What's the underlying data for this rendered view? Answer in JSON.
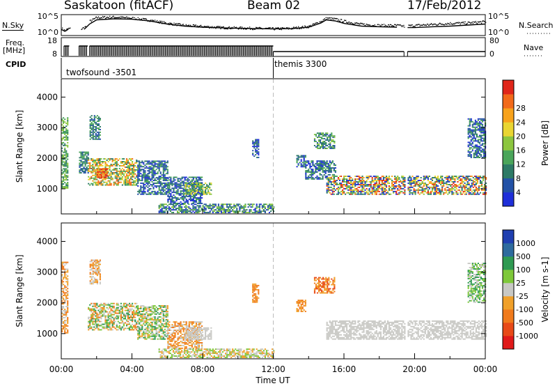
{
  "header": {
    "station": "Saskatoon (fitACF)",
    "beam": "Beam 02",
    "date": "17/Feb/2012"
  },
  "chart_data": [
    {
      "type": "line",
      "panel": "noise",
      "left_label": "N.Sky",
      "right_label": "N.Search",
      "left_ticks": [
        "10^5",
        "10^0"
      ],
      "right_ticks": [
        "10^5",
        "10^0"
      ],
      "x_hours": [
        0,
        0.2,
        0.4,
        1.0,
        1.3,
        1.6,
        2,
        3,
        4,
        5,
        6,
        7,
        8,
        9,
        10,
        11,
        12,
        13,
        14,
        14.7,
        15,
        15.5,
        16,
        17,
        18,
        19,
        19.5,
        19.6,
        20,
        21,
        22,
        23,
        24
      ],
      "sky": [
        0.3,
        0.2,
        0.3,
        0.25,
        0.3,
        0.55,
        0.75,
        0.8,
        0.78,
        0.7,
        0.55,
        0.45,
        0.4,
        0.37,
        0.35,
        0.33,
        0.32,
        0.33,
        0.4,
        0.6,
        0.75,
        0.7,
        0.58,
        0.45,
        0.42,
        0.4,
        0.35,
        0.38,
        0.38,
        0.42,
        0.45,
        0.5,
        0.55
      ],
      "search": [
        0.35,
        0.25,
        0.35,
        0.3,
        0.4,
        0.7,
        0.88,
        0.9,
        0.85,
        0.75,
        0.6,
        0.5,
        0.45,
        0.4,
        0.38,
        0.36,
        0.34,
        0.36,
        0.45,
        0.7,
        0.85,
        0.8,
        0.7,
        0.55,
        0.5,
        0.5,
        0.45,
        0.48,
        0.5,
        0.55,
        0.6,
        0.62,
        0.68
      ],
      "gaps": [
        [
          0.5,
          1.1
        ],
        [
          1.4,
          1.6
        ],
        [
          19.4,
          19.6
        ]
      ]
    },
    {
      "type": "line",
      "panel": "frequency",
      "left_label_lines": [
        "Freq.",
        "[MHz]"
      ],
      "right_label": "Nave",
      "left_ticks": [
        18,
        8
      ],
      "right_ticks": [
        80,
        0
      ],
      "freq_segments": [
        {
          "start": 0.15,
          "end": 0.45,
          "level": "high"
        },
        {
          "start": 1.0,
          "end": 1.5,
          "level": "high"
        },
        {
          "start": 1.6,
          "end": 12.0,
          "level": "high"
        },
        {
          "start": 12.0,
          "end": 19.4,
          "level": "low"
        },
        {
          "start": 19.6,
          "end": 24.0,
          "level": "low"
        }
      ],
      "mode_change": 12.0
    },
    {
      "type": "table",
      "panel": "cpid",
      "label": "CPID",
      "modes": [
        {
          "name": "twofsound -3501",
          "start": 0.0
        },
        {
          "name": "themis 3300",
          "start": 12.0
        }
      ]
    },
    {
      "type": "heatmap",
      "panel": "power",
      "ylabel": "Slant Range [km]",
      "yticks": [
        1000,
        2000,
        3000,
        4000
      ],
      "ylim": [
        180,
        4600
      ],
      "xlim": [
        0,
        24
      ],
      "colorbar_label": "Power [dB]",
      "colorbar_ticks": [
        4,
        8,
        12,
        16,
        20,
        24,
        28
      ],
      "colors": [
        "#1f2fd9",
        "#2352a6",
        "#2d7a66",
        "#4aa55a",
        "#8cc63f",
        "#e9d532",
        "#f7a21c",
        "#f26a1a",
        "#e0261a"
      ],
      "regions": [
        {
          "t0": 0.0,
          "t1": 0.35,
          "r0": 1000,
          "r1": 3300,
          "levels": [
            2,
            4
          ]
        },
        {
          "t0": 1.0,
          "t1": 1.5,
          "r0": 1500,
          "r1": 2200,
          "levels": [
            1,
            3
          ]
        },
        {
          "t0": 1.6,
          "t1": 2.2,
          "r0": 2600,
          "r1": 3400,
          "levels": [
            1,
            3
          ]
        },
        {
          "t0": 1.5,
          "t1": 4.3,
          "r0": 1100,
          "r1": 2000,
          "levels": [
            2,
            7
          ]
        },
        {
          "t0": 2.0,
          "t1": 2.6,
          "r0": 1350,
          "r1": 1650,
          "levels": [
            6,
            8
          ]
        },
        {
          "t0": 4.3,
          "t1": 6.0,
          "r0": 800,
          "r1": 1900,
          "levels": [
            0,
            3
          ]
        },
        {
          "t0": 6.0,
          "t1": 8.0,
          "r0": 500,
          "r1": 1400,
          "levels": [
            0,
            3
          ]
        },
        {
          "t0": 7.0,
          "t1": 8.5,
          "r0": 800,
          "r1": 1200,
          "levels": [
            2,
            5
          ]
        },
        {
          "t0": 5.5,
          "t1": 12.0,
          "r0": 200,
          "r1": 500,
          "levels": [
            0,
            4
          ]
        },
        {
          "t0": 10.8,
          "t1": 11.2,
          "r0": 2000,
          "r1": 2600,
          "levels": [
            0,
            2
          ]
        },
        {
          "t0": 13.3,
          "t1": 13.8,
          "r0": 1700,
          "r1": 2100,
          "levels": [
            0,
            3
          ]
        },
        {
          "t0": 14.3,
          "t1": 15.5,
          "r0": 2300,
          "r1": 2800,
          "levels": [
            1,
            4
          ]
        },
        {
          "t0": 13.8,
          "t1": 15.5,
          "r0": 1300,
          "r1": 1900,
          "levels": [
            0,
            3
          ]
        },
        {
          "t0": 15.0,
          "t1": 19.4,
          "r0": 800,
          "r1": 1400,
          "levels": [
            0,
            8
          ]
        },
        {
          "t0": 19.6,
          "t1": 24.0,
          "r0": 800,
          "r1": 1400,
          "levels": [
            0,
            8
          ]
        },
        {
          "t0": 23.0,
          "t1": 24.0,
          "r0": 2000,
          "r1": 3300,
          "levels": [
            0,
            3
          ]
        }
      ]
    },
    {
      "type": "heatmap",
      "panel": "velocity",
      "ylabel": "Slant Range [km]",
      "yticks": [
        1000,
        2000,
        3000,
        4000
      ],
      "ylim": [
        180,
        4600
      ],
      "xlim": [
        0,
        24
      ],
      "xticks": [
        "00:00",
        "04:00",
        "08:00",
        "12:00",
        "16:00",
        "20:00",
        "00:00"
      ],
      "xlabel": "Time UT",
      "colorbar_label": "Velocity [m s-1]",
      "colorbar_ticks": [
        "1000",
        "500",
        "100",
        "25",
        "-25",
        "-100",
        "-500",
        "-1000"
      ],
      "colors": [
        "#1f3fb0",
        "#2e6b9e",
        "#2f9a52",
        "#7ec83a",
        "#c8c8c4",
        "#f0a02a",
        "#f07a1c",
        "#e84a18",
        "#e01a1a"
      ],
      "regions": [
        {
          "t0": 0.0,
          "t1": 0.35,
          "r0": 1000,
          "r1": 3300,
          "levels": [
            4,
            6
          ]
        },
        {
          "t0": 1.6,
          "t1": 2.2,
          "r0": 2600,
          "r1": 3400,
          "levels": [
            4,
            6
          ]
        },
        {
          "t0": 1.5,
          "t1": 4.3,
          "r0": 1100,
          "r1": 2000,
          "levels": [
            2,
            6
          ]
        },
        {
          "t0": 4.3,
          "t1": 6.0,
          "r0": 800,
          "r1": 1900,
          "levels": [
            2,
            5
          ]
        },
        {
          "t0": 6.0,
          "t1": 8.0,
          "r0": 500,
          "r1": 1400,
          "levels": [
            4,
            6
          ]
        },
        {
          "t0": 7.0,
          "t1": 8.5,
          "r0": 800,
          "r1": 1200,
          "levels": [
            4,
            4
          ]
        },
        {
          "t0": 5.5,
          "t1": 12.0,
          "r0": 200,
          "r1": 500,
          "levels": [
            3,
            5
          ]
        },
        {
          "t0": 10.8,
          "t1": 11.2,
          "r0": 2000,
          "r1": 2600,
          "levels": [
            5,
            6
          ]
        },
        {
          "t0": 13.3,
          "t1": 13.8,
          "r0": 1700,
          "r1": 2100,
          "levels": [
            5,
            6
          ]
        },
        {
          "t0": 14.3,
          "t1": 15.5,
          "r0": 2300,
          "r1": 2800,
          "levels": [
            5,
            7
          ]
        },
        {
          "t0": 15.0,
          "t1": 19.4,
          "r0": 800,
          "r1": 1400,
          "levels": [
            4,
            4
          ]
        },
        {
          "t0": 19.6,
          "t1": 24.0,
          "r0": 800,
          "r1": 1400,
          "levels": [
            4,
            4
          ]
        },
        {
          "t0": 23.0,
          "t1": 24.0,
          "r0": 2000,
          "r1": 3300,
          "levels": [
            2,
            4
          ]
        }
      ]
    }
  ]
}
